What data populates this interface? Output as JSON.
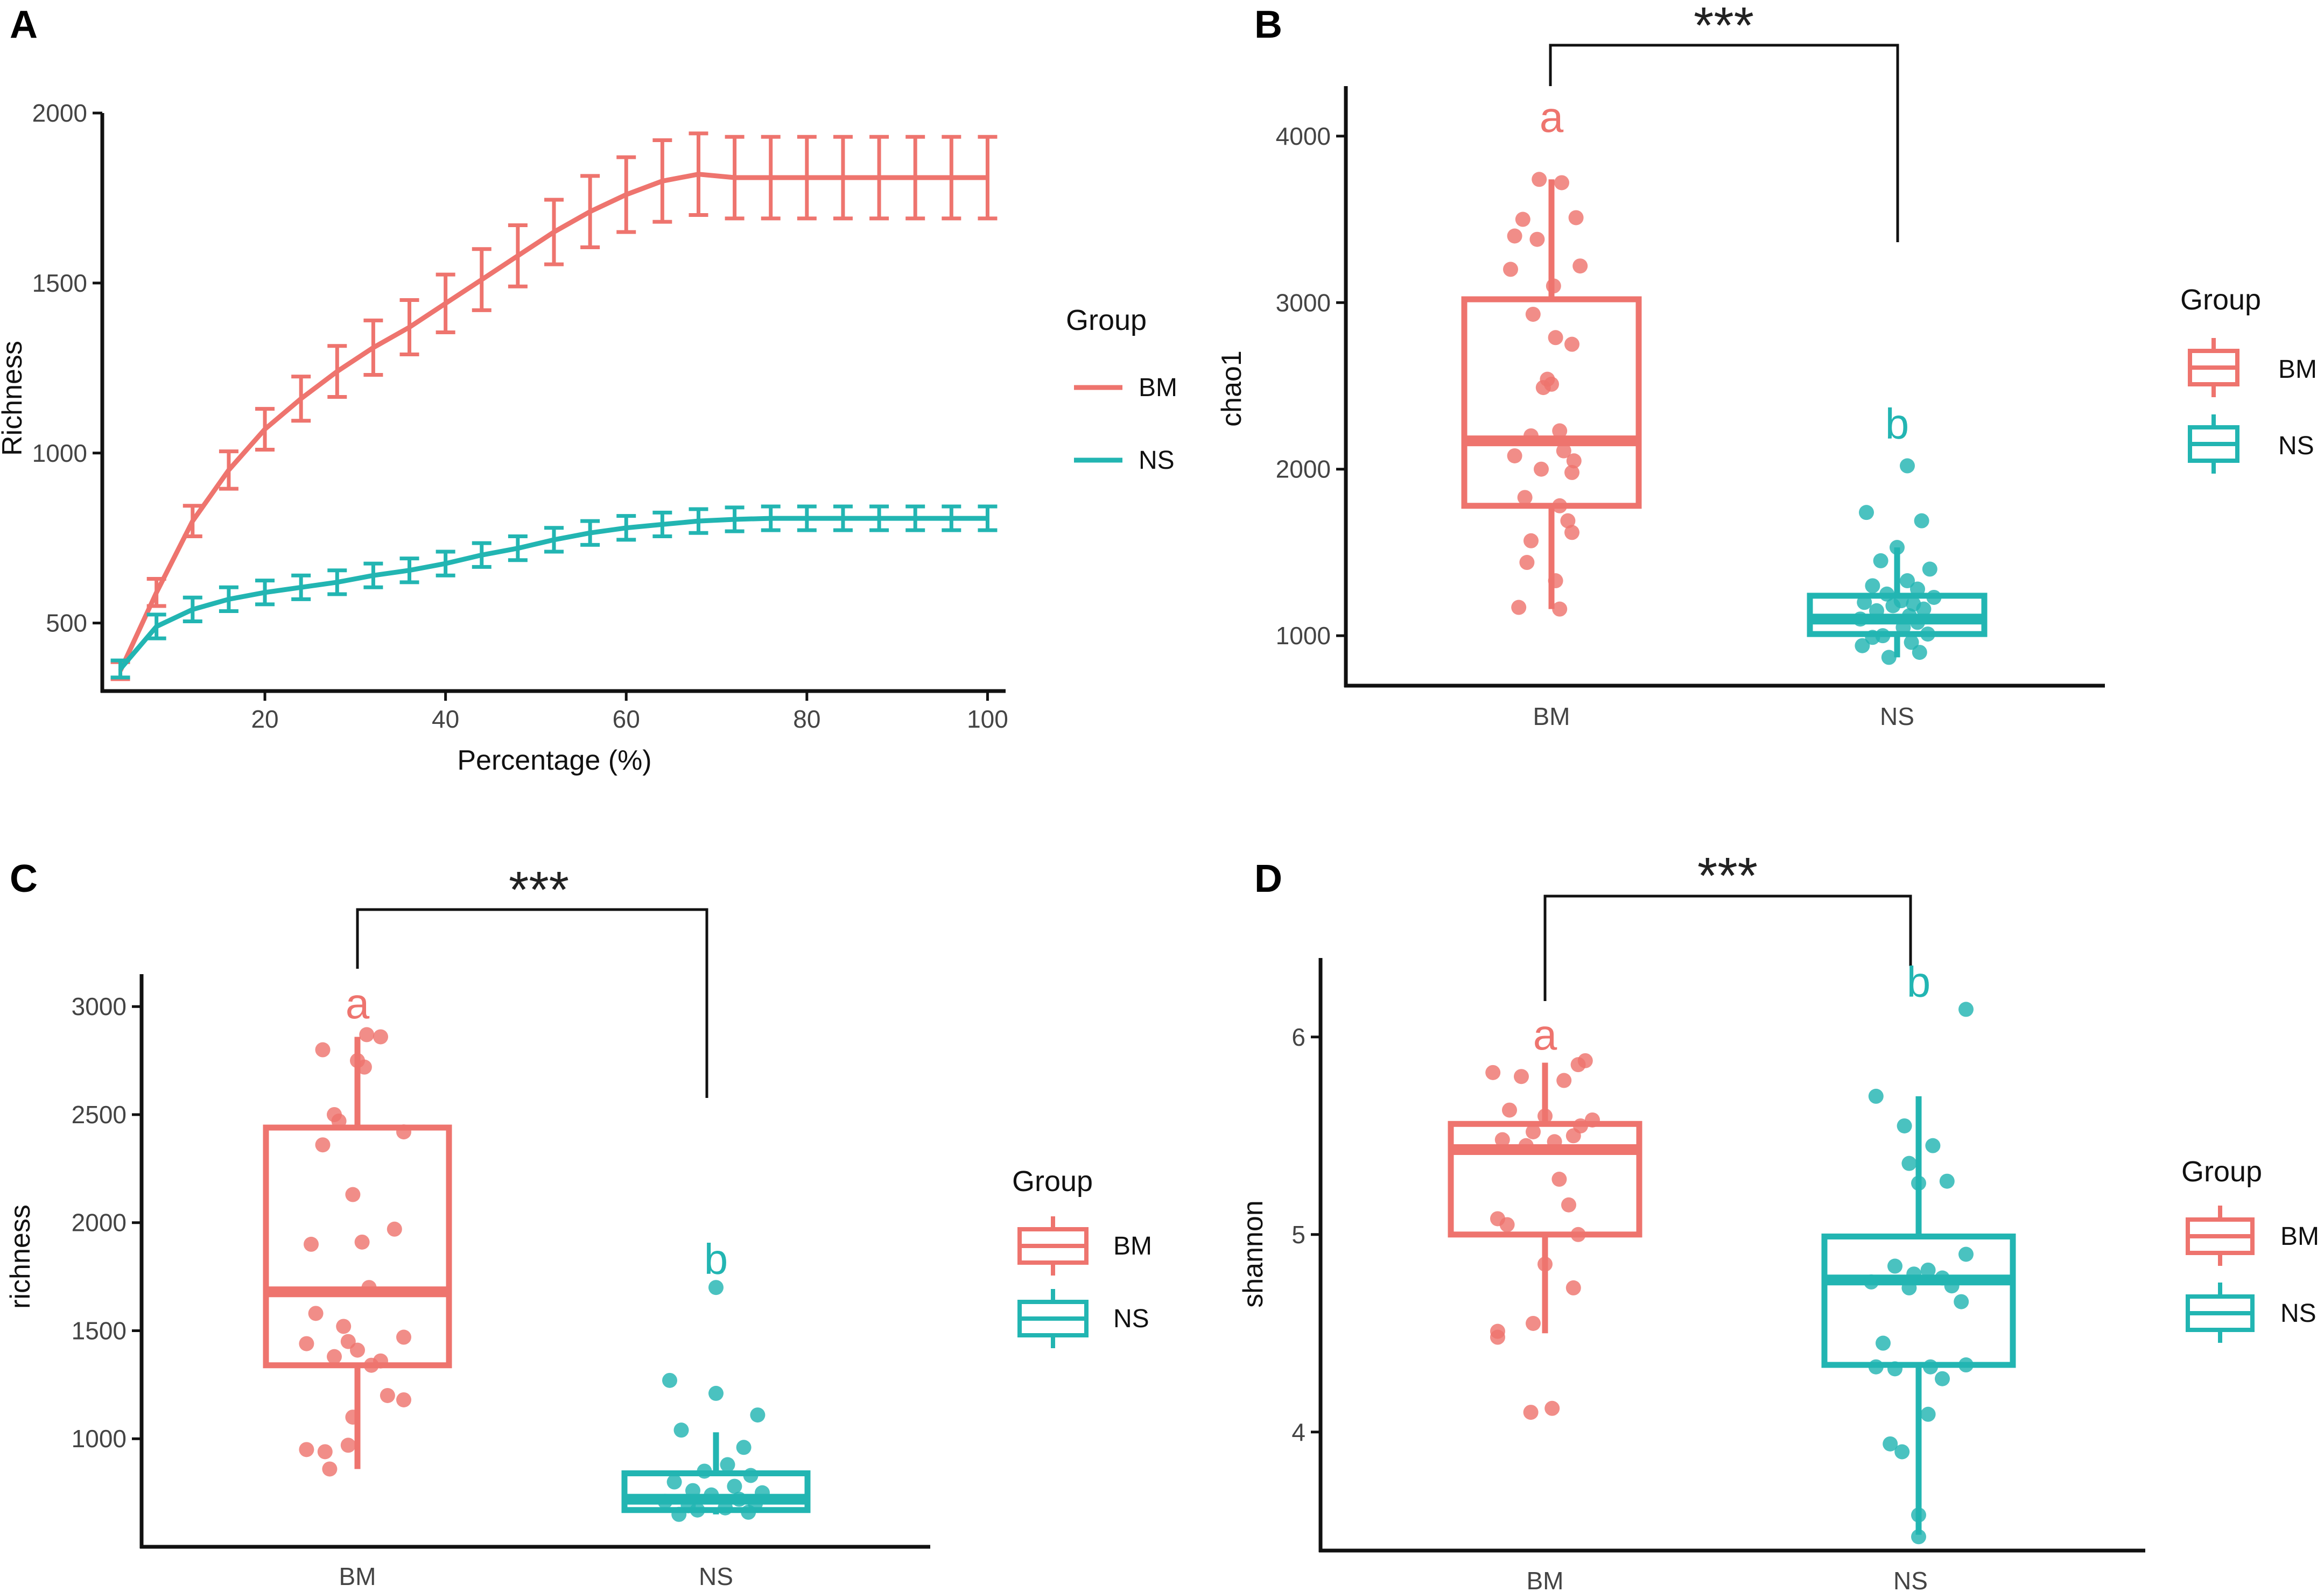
{
  "colors": {
    "BM": "#EE746E",
    "NS": "#22B5B2",
    "axis": "#111111",
    "text": "#444444"
  },
  "panels": {
    "A": "A",
    "B": "B",
    "C": "C",
    "D": "D"
  },
  "chart_data": [
    {
      "panel": "A",
      "type": "line",
      "xlabel": "Percentage (%)",
      "ylabel": "Richness",
      "xlim": [
        2,
        102
      ],
      "ylim": [
        300,
        2000
      ],
      "xticks": [
        20,
        40,
        60,
        80,
        100
      ],
      "yticks": [
        500,
        1000,
        1500,
        2000
      ],
      "legend_title": "Group",
      "legend_position": "right",
      "x": [
        4,
        8,
        12,
        16,
        20,
        24,
        28,
        32,
        36,
        40,
        44,
        48,
        52,
        56,
        60,
        64,
        68,
        72,
        76,
        80,
        84,
        88,
        92,
        96,
        100
      ],
      "series": [
        {
          "name": "BM",
          "values": [
            360,
            590,
            800,
            950,
            1070,
            1160,
            1240,
            1310,
            1370,
            1440,
            1510,
            1580,
            1650,
            1710,
            1760,
            1800,
            1820,
            1810,
            1810,
            1810,
            1810,
            1810,
            1810,
            1810,
            1810
          ],
          "errors": [
            25,
            40,
            45,
            55,
            60,
            65,
            75,
            80,
            80,
            85,
            90,
            90,
            95,
            105,
            110,
            120,
            120,
            120,
            120,
            120,
            120,
            120,
            120,
            120,
            120
          ]
        },
        {
          "name": "NS",
          "values": [
            365,
            490,
            540,
            570,
            590,
            605,
            620,
            640,
            655,
            675,
            700,
            720,
            745,
            765,
            780,
            790,
            800,
            805,
            808,
            808,
            808,
            808,
            808,
            808,
            808
          ],
          "errors": [
            25,
            35,
            35,
            35,
            35,
            35,
            35,
            35,
            35,
            35,
            35,
            35,
            35,
            35,
            35,
            35,
            35,
            35,
            35,
            35,
            35,
            35,
            35,
            35,
            35
          ]
        }
      ]
    },
    {
      "panel": "B",
      "type": "box",
      "xlabel": "",
      "ylabel": "chao1",
      "categories": [
        "BM",
        "NS"
      ],
      "ylim": [
        700,
        4300
      ],
      "yticks": [
        1000,
        2000,
        3000,
        4000
      ],
      "legend_title": "Group",
      "legend_position": "right",
      "significance": "***",
      "letters": [
        "a",
        "b"
      ],
      "boxes": [
        {
          "name": "BM",
          "min": 1160,
          "q1": 1780,
          "median": 2170,
          "q3": 3020,
          "max": 3740
        },
        {
          "name": "NS",
          "min": 870,
          "q1": 1010,
          "median": 1100,
          "q3": 1240,
          "max": 1530
        }
      ],
      "points": [
        {
          "name": "BM",
          "y": [
            3740,
            3720,
            3510,
            3500,
            3400,
            3380,
            3220,
            3200,
            3100,
            2930,
            2790,
            2750,
            2540,
            2510,
            2490,
            2230,
            2200,
            2110,
            2080,
            2050,
            2000,
            1980,
            1830,
            1780,
            1690,
            1620,
            1570,
            1440,
            1330,
            1170,
            1160
          ],
          "jitter": [
            -0.06,
            0.05,
            0.12,
            -0.14,
            -0.18,
            -0.07,
            0.14,
            -0.2,
            0.01,
            -0.09,
            0.02,
            0.1,
            -0.02,
            0.0,
            -0.04,
            0.04,
            -0.1,
            0.06,
            -0.18,
            0.11,
            -0.05,
            0.1,
            -0.13,
            0.04,
            0.08,
            0.1,
            -0.1,
            -0.12,
            0.02,
            -0.16,
            0.04
          ]
        },
        {
          "name": "NS",
          "y": [
            2020,
            1740,
            1690,
            1530,
            1450,
            1400,
            1330,
            1300,
            1280,
            1250,
            1230,
            1210,
            1200,
            1190,
            1180,
            1160,
            1150,
            1120,
            1100,
            1080,
            1050,
            1010,
            1000,
            990,
            960,
            940,
            900,
            870
          ],
          "jitter": [
            0.05,
            -0.15,
            0.12,
            0.0,
            -0.08,
            0.16,
            0.05,
            -0.12,
            0.1,
            -0.05,
            0.18,
            0.02,
            -0.16,
            0.08,
            -0.02,
            0.13,
            -0.1,
            0.06,
            -0.18,
            0.1,
            0.03,
            0.15,
            -0.07,
            -0.12,
            0.07,
            -0.17,
            0.11,
            -0.04
          ]
        }
      ]
    },
    {
      "panel": "C",
      "type": "box",
      "xlabel": "",
      "ylabel": "richness",
      "categories": [
        "BM",
        "NS"
      ],
      "ylim": [
        500,
        3150
      ],
      "yticks": [
        1000,
        1500,
        2000,
        2500,
        3000
      ],
      "legend_title": "Group",
      "legend_position": "right",
      "significance": "***",
      "letters": [
        "a",
        "b"
      ],
      "boxes": [
        {
          "name": "BM",
          "min": 860,
          "q1": 1340,
          "median": 1680,
          "q3": 2440,
          "max": 2860
        },
        {
          "name": "NS",
          "min": 650,
          "q1": 670,
          "median": 720,
          "q3": 840,
          "max": 1030
        }
      ],
      "points": [
        {
          "name": "BM",
          "y": [
            2870,
            2860,
            2800,
            2750,
            2720,
            2500,
            2470,
            2420,
            2360,
            2130,
            1970,
            1910,
            1900,
            1700,
            1580,
            1520,
            1470,
            1450,
            1440,
            1410,
            1380,
            1360,
            1340,
            1200,
            1180,
            1100,
            970,
            950,
            940,
            860
          ],
          "jitter": [
            0.04,
            0.1,
            -0.15,
            0.0,
            0.03,
            -0.1,
            -0.08,
            0.2,
            -0.15,
            -0.02,
            0.16,
            0.02,
            -0.2,
            0.05,
            -0.18,
            -0.06,
            0.2,
            -0.04,
            -0.22,
            0.0,
            -0.1,
            0.1,
            0.06,
            0.13,
            0.2,
            -0.02,
            -0.04,
            -0.22,
            -0.14,
            -0.12
          ]
        },
        {
          "name": "NS",
          "y": [
            1700,
            1270,
            1210,
            1110,
            1040,
            960,
            880,
            850,
            830,
            800,
            780,
            760,
            750,
            740,
            720,
            710,
            700,
            690,
            680,
            670,
            660,
            650
          ],
          "jitter": [
            0.0,
            -0.2,
            0.0,
            0.18,
            -0.15,
            0.12,
            0.05,
            -0.05,
            0.15,
            -0.18,
            0.08,
            -0.1,
            0.2,
            -0.02,
            0.1,
            -0.22,
            0.17,
            -0.12,
            0.04,
            -0.08,
            0.14,
            -0.16
          ]
        }
      ]
    },
    {
      "panel": "D",
      "type": "box",
      "xlabel": "",
      "ylabel": "shannon",
      "categories": [
        "BM",
        "NS"
      ],
      "ylim": [
        3.4,
        6.4
      ],
      "yticks": [
        4,
        5,
        6
      ],
      "legend_title": "Group",
      "legend_position": "right",
      "significance": "***",
      "letters": [
        "a",
        "b"
      ],
      "boxes": [
        {
          "name": "BM",
          "min": 4.5,
          "q1": 5.0,
          "median": 5.43,
          "q3": 5.56,
          "max": 5.87
        },
        {
          "name": "NS",
          "min": 3.48,
          "q1": 4.34,
          "median": 4.77,
          "q3": 4.99,
          "max": 5.7
        }
      ],
      "points": [
        {
          "name": "BM",
          "y": [
            5.88,
            5.86,
            5.82,
            5.8,
            5.78,
            5.63,
            5.6,
            5.58,
            5.55,
            5.52,
            5.5,
            5.48,
            5.47,
            5.45,
            5.28,
            5.15,
            5.08,
            5.05,
            5.0,
            4.85,
            4.73,
            4.55,
            4.51,
            4.48,
            4.12,
            4.1
          ],
          "jitter": [
            0.17,
            0.14,
            -0.22,
            -0.1,
            0.08,
            -0.15,
            0.0,
            0.2,
            0.15,
            -0.05,
            0.12,
            -0.18,
            0.04,
            -0.08,
            0.06,
            0.1,
            -0.2,
            -0.16,
            0.14,
            0.0,
            0.12,
            -0.05,
            -0.2,
            -0.2,
            0.03,
            -0.06
          ]
        },
        {
          "name": "NS",
          "y": [
            6.14,
            5.7,
            5.55,
            5.45,
            5.36,
            5.27,
            5.26,
            4.9,
            4.84,
            4.82,
            4.8,
            4.78,
            4.76,
            4.74,
            4.73,
            4.66,
            4.45,
            4.34,
            4.33,
            4.33,
            4.32,
            4.27,
            4.09,
            3.94,
            3.9,
            3.58,
            3.47
          ],
          "jitter": [
            0.2,
            -0.18,
            -0.06,
            0.06,
            -0.04,
            0.12,
            0.0,
            0.2,
            -0.1,
            0.04,
            -0.02,
            0.1,
            -0.2,
            0.14,
            -0.04,
            0.18,
            -0.15,
            0.2,
            -0.18,
            0.05,
            -0.1,
            0.1,
            0.04,
            -0.12,
            -0.07,
            0.0,
            0.0
          ]
        }
      ]
    }
  ]
}
